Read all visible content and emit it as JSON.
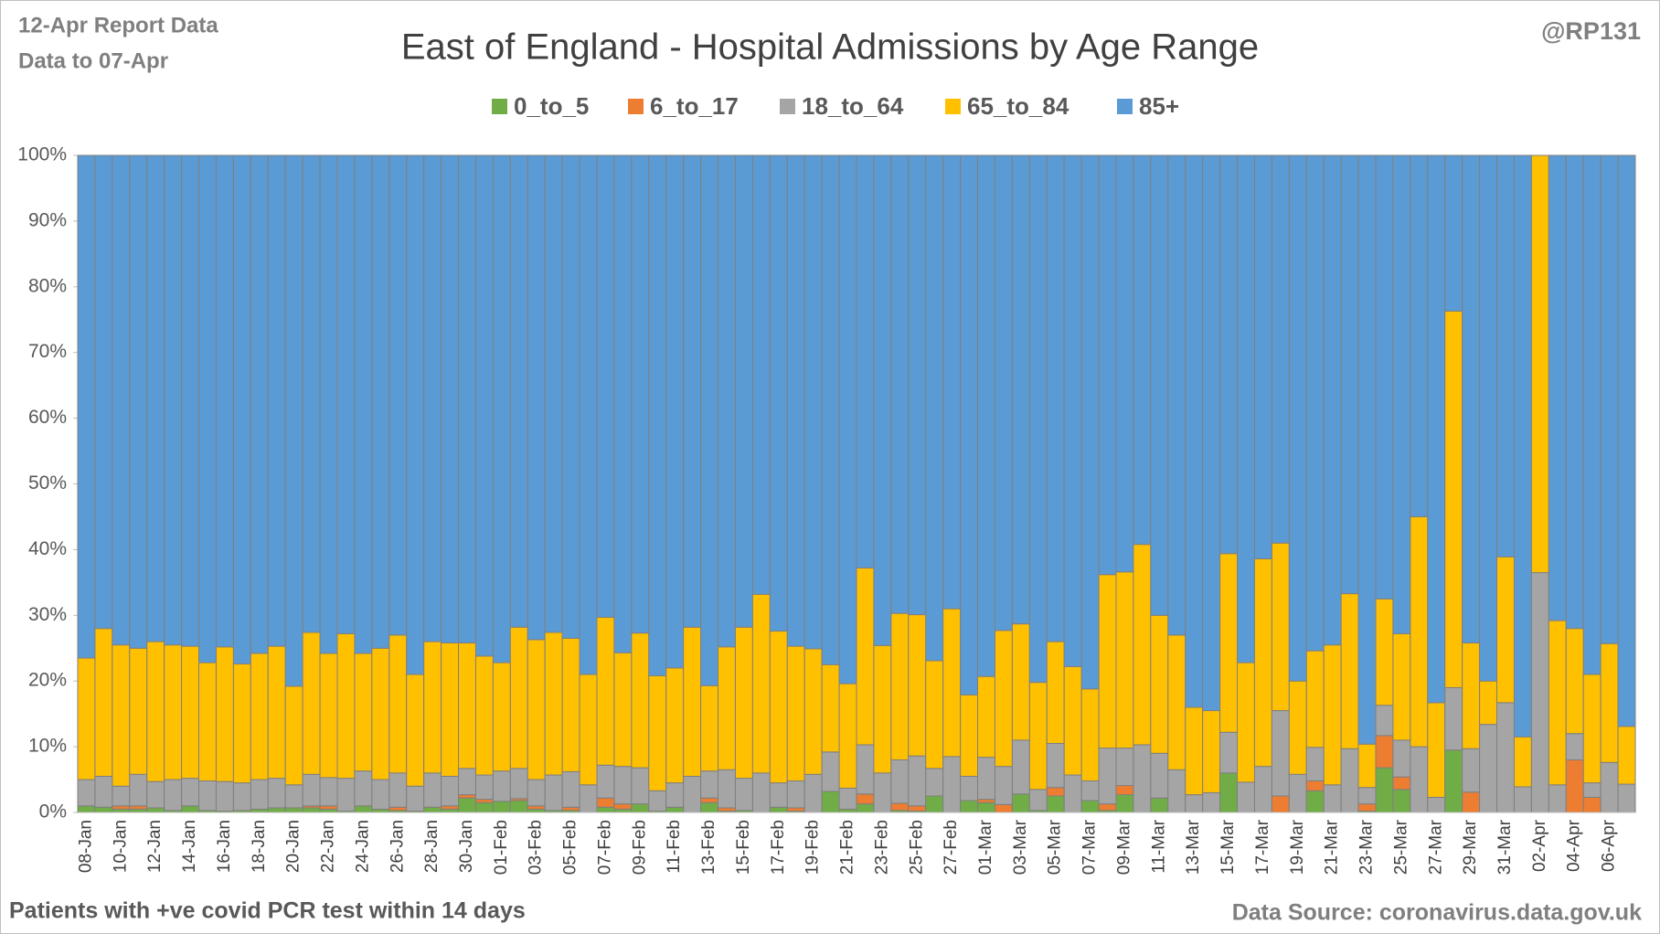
{
  "chart_data": {
    "type": "stacked_bar_100",
    "title": "East of England - Hospital Admissions by Age Range",
    "report_note": "12-Apr Report Data",
    "data_note": "Data to 07-Apr",
    "author": "@RP131",
    "footnote": "Patients with  +ve covid PCR test within 14 days",
    "source": "Data Source: coronavirus.data.gov.uk",
    "categories": [
      "08-Jan",
      null,
      "10-Jan",
      null,
      "12-Jan",
      null,
      "14-Jan",
      null,
      "16-Jan",
      null,
      "18-Jan",
      null,
      "20-Jan",
      null,
      "22-Jan",
      null,
      "24-Jan",
      null,
      "26-Jan",
      null,
      "28-Jan",
      null,
      "30-Jan",
      null,
      "01-Feb",
      null,
      "03-Feb",
      null,
      "05-Feb",
      null,
      "07-Feb",
      null,
      "09-Feb",
      null,
      "11-Feb",
      null,
      "13-Feb",
      null,
      "15-Feb",
      null,
      "17-Feb",
      null,
      "19-Feb",
      null,
      "21-Feb",
      null,
      "23-Feb",
      null,
      "25-Feb",
      null,
      "27-Feb",
      null,
      "01-Mar",
      null,
      "03-Mar",
      null,
      "05-Mar",
      null,
      "07-Mar",
      null,
      "09-Mar",
      null,
      "11-Mar",
      null,
      "13-Mar",
      null,
      "15-Mar",
      null,
      "17-Mar",
      null,
      "19-Mar",
      null,
      "21-Mar",
      null,
      "23-Mar",
      null,
      "25-Mar",
      null,
      "27-Mar",
      null,
      "29-Mar",
      null,
      "31-Mar",
      null,
      "02-Apr",
      null,
      "04-Apr",
      null,
      "06-Apr",
      null
    ],
    "series": [
      {
        "name": "0_to_5",
        "color": "#70ad47",
        "values": [
          1,
          0.8,
          0.5,
          0.5,
          0.7,
          0.3,
          1,
          0.3,
          0.2,
          0.3,
          0.5,
          0.7,
          0.7,
          0.7,
          0.5,
          0.2,
          1,
          0.5,
          0.3,
          0.2,
          0.8,
          0.5,
          2.2,
          1.5,
          1.7,
          1.8,
          0.5,
          0.3,
          0.3,
          0,
          0.8,
          0.5,
          1.3,
          0.2,
          0.8,
          0,
          1.5,
          0.2,
          0.3,
          0,
          0.8,
          0.2,
          0,
          3.2,
          0.5,
          1.3,
          0,
          0.3,
          0.2,
          2.5,
          0,
          1.8,
          1.5,
          0,
          2.8,
          0.3,
          2.5,
          0,
          1.8,
          0.3,
          2.7,
          0,
          2.2,
          0,
          0,
          0,
          6,
          0,
          0,
          0,
          0,
          3.3,
          0,
          0,
          0.2,
          6.8,
          3.5,
          0,
          0,
          9.5,
          0,
          0,
          0,
          0,
          0,
          0,
          0,
          0,
          0,
          0
        ]
      },
      {
        "name": "6_to_17",
        "color": "#ed7d31",
        "values": [
          0,
          0,
          0.5,
          0.5,
          0,
          0,
          0,
          0,
          0,
          0,
          0,
          0,
          0,
          0.3,
          0.5,
          0,
          0,
          0,
          0.5,
          0,
          0,
          0.5,
          0.5,
          0.5,
          0,
          0.3,
          0.5,
          0,
          0.5,
          0,
          1.4,
          0.8,
          0,
          0,
          0,
          0,
          0.7,
          0.5,
          0,
          0,
          0,
          0.5,
          0,
          0,
          0,
          1.5,
          0,
          1.1,
          0.8,
          0,
          0,
          0,
          0.5,
          1.2,
          0,
          0,
          1.3,
          0,
          0,
          1,
          1.4,
          0,
          0,
          0,
          0,
          0,
          0,
          0,
          0,
          2.5,
          0,
          1.5,
          0,
          0,
          1.1,
          4.9,
          1.9,
          0,
          0,
          0,
          3.1,
          0,
          0,
          0,
          0,
          0,
          8,
          2.3,
          0,
          0
        ]
      },
      {
        "name": "18_to_64",
        "color": "#a5a5a5",
        "values": [
          4,
          4.7,
          3,
          4.8,
          4,
          4.7,
          4.2,
          4.5,
          4.5,
          4.2,
          4.5,
          4.5,
          3.5,
          4.8,
          4.3,
          5,
          5.3,
          4.5,
          5.2,
          3.8,
          5.2,
          4.5,
          4,
          3.7,
          4.6,
          4.6,
          4,
          5.4,
          5.4,
          4.2,
          5,
          5.7,
          5.5,
          3.1,
          3.7,
          5.5,
          4.1,
          5.8,
          4.9,
          6,
          3.7,
          4.1,
          5.8,
          6,
          3.2,
          7.5,
          6,
          6.6,
          7.6,
          4.2,
          8.5,
          3.7,
          6.4,
          5.8,
          8.2,
          3.2,
          6.7,
          5.7,
          3,
          8.5,
          5.7,
          10.3,
          6.8,
          6.5,
          2.7,
          3,
          6.2,
          4.6,
          7,
          13,
          5.8,
          5.1,
          4.2,
          9.7,
          2.5,
          4.6,
          5.6,
          10,
          2.3,
          9.5,
          6.6,
          13.4,
          16.7,
          3.9,
          36.5,
          4.2,
          4,
          2.2,
          7.6,
          4.3
        ]
      },
      {
        "name": "65_to_84",
        "color": "#ffc000",
        "values": [
          18.5,
          22.5,
          21.5,
          19.2,
          21.3,
          20.5,
          20.1,
          18,
          20.5,
          18.1,
          19.2,
          20.1,
          15,
          21.6,
          18.9,
          22,
          17.9,
          20,
          21,
          17,
          20,
          20.3,
          19.1,
          18.1,
          16.5,
          21.5,
          21.3,
          21.7,
          20.3,
          16.8,
          22.5,
          17.3,
          20.5,
          17.5,
          17.5,
          22.7,
          13,
          18.7,
          23,
          27.2,
          23.1,
          20.5,
          19.1,
          13.3,
          15.9,
          26.9,
          19.4,
          22.3,
          21.5,
          16.4,
          22.5,
          12.4,
          12.3,
          20.7,
          17.7,
          16.3,
          15.5,
          16.5,
          14,
          26.4,
          26.8,
          30.5,
          21,
          20.5,
          13.3,
          12.5,
          27.2,
          18.2,
          31.6,
          25.5,
          14.2,
          14.7,
          21.3,
          23.6,
          6.6,
          16.2,
          16.2,
          35,
          14.4,
          57.3,
          16.1,
          6.6,
          22.2,
          7.6,
          63.5,
          25,
          16,
          16.5,
          18.1,
          8.8
        ]
      },
      {
        "name": "85+",
        "color": "#5b9bd5",
        "values": [
          76.5,
          72,
          74.5,
          75,
          74,
          74.5,
          74.7,
          77.2,
          74.8,
          77.4,
          75.8,
          74.7,
          80.8,
          72.6,
          75.8,
          72.8,
          75.8,
          75,
          73,
          79,
          74,
          74.2,
          74.2,
          76.2,
          77.2,
          71.8,
          73.7,
          72.6,
          73.5,
          79,
          70.3,
          75.7,
          72.7,
          79.2,
          78,
          71.8,
          80.7,
          74.8,
          71.8,
          66.8,
          72.4,
          74.7,
          75.1,
          77.5,
          80.4,
          62.8,
          74.6,
          69.7,
          69.9,
          76.9,
          69,
          82.1,
          79.3,
          72.3,
          71.3,
          80.2,
          74,
          77.8,
          81.2,
          63.8,
          63.4,
          59.2,
          70,
          73,
          84,
          84.5,
          60.6,
          77.2,
          61.4,
          59,
          80,
          75.4,
          74.5,
          66.7,
          89.6,
          67.5,
          72.8,
          55,
          83.3,
          23.7,
          74.2,
          80,
          61.1,
          88.5,
          0,
          70.8,
          72,
          79,
          74.3,
          86.9
        ]
      }
    ],
    "ylim": [
      0,
      100
    ],
    "yticks": [
      {
        "value": 0,
        "label": "0%"
      },
      {
        "value": 10,
        "label": "10%"
      },
      {
        "value": 20,
        "label": "20%"
      },
      {
        "value": 30,
        "label": "30%"
      },
      {
        "value": 40,
        "label": "40%"
      },
      {
        "value": 50,
        "label": "50%"
      },
      {
        "value": 60,
        "label": "60%"
      },
      {
        "value": 70,
        "label": "70%"
      },
      {
        "value": 80,
        "label": "80%"
      },
      {
        "value": 90,
        "label": "90%"
      },
      {
        "value": 100,
        "label": "100%"
      }
    ],
    "legend": "top"
  }
}
